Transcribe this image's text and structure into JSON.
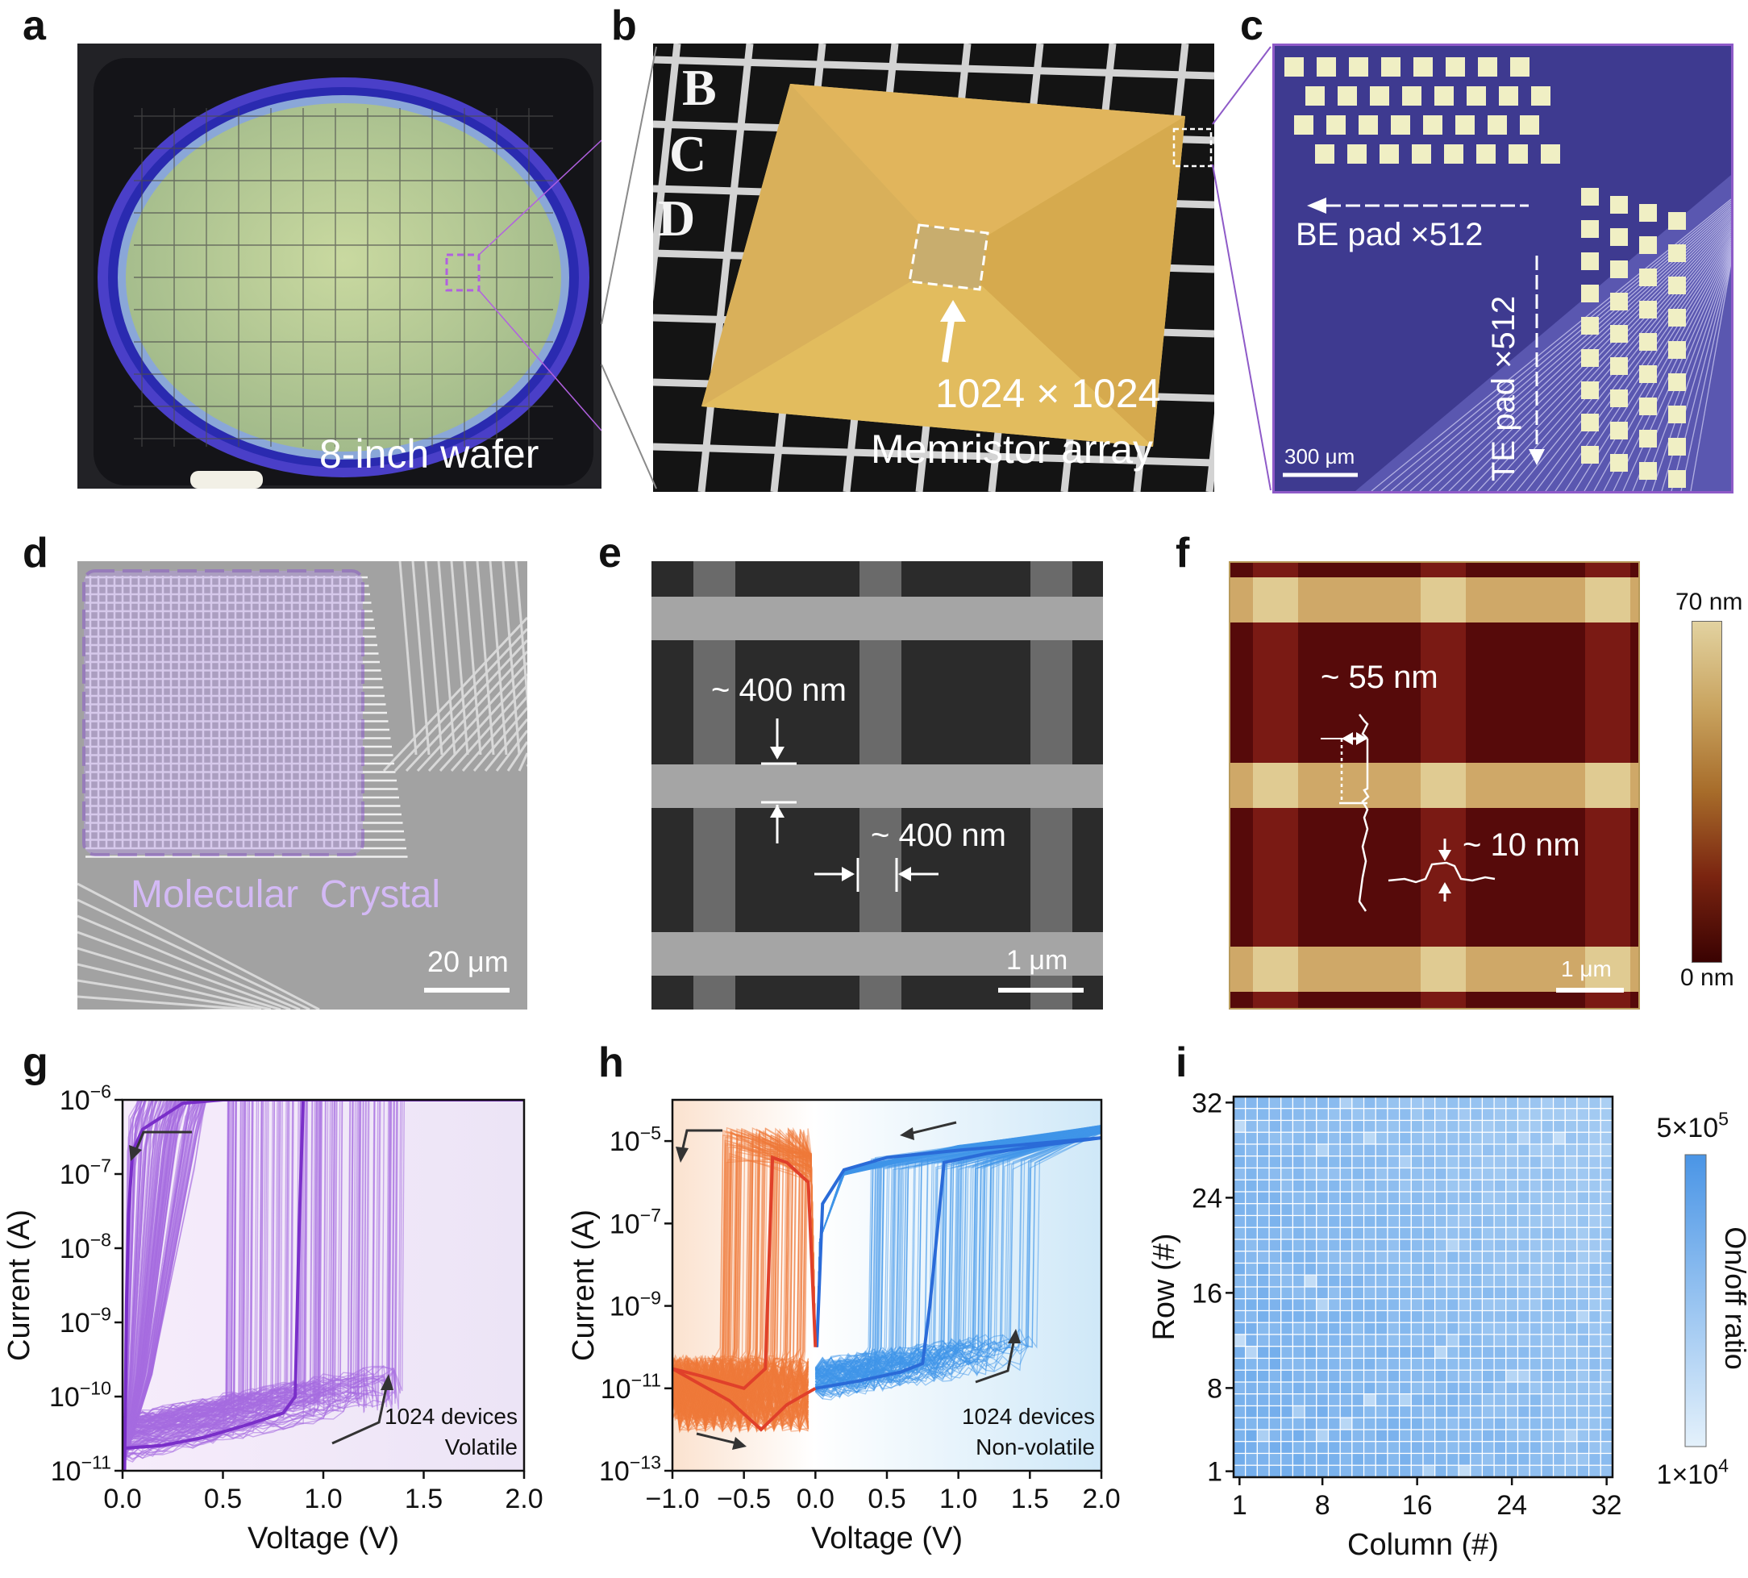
{
  "panels": {
    "a": {
      "letter": "a",
      "caption": "8-inch wafer"
    },
    "b": {
      "letter": "b",
      "caption_line1": "1024 × 1024",
      "caption_line2": "Memristor array",
      "wafer_letters": [
        "B",
        "C",
        "D"
      ]
    },
    "c": {
      "letter": "c",
      "be_label": "BE pad ×512",
      "te_label": "TE pad ×512",
      "scale": "300 μm"
    },
    "d": {
      "letter": "d",
      "overlay_label": "Molecular  Crystal",
      "scale": "20 μm"
    },
    "e": {
      "letter": "e",
      "width_label_1": "~ 400 nm",
      "width_label_2": "~ 400 nm",
      "scale": "1 μm"
    },
    "f": {
      "letter": "f",
      "height_label_1": "~ 55 nm",
      "height_label_2": "~ 10 nm",
      "scale": "1 μm",
      "colorbar_max": "70 nm",
      "colorbar_min": "0 nm"
    },
    "g": {
      "letter": "g"
    },
    "h": {
      "letter": "h"
    },
    "i": {
      "letter": "i"
    }
  },
  "colors": {
    "purple": "#a56be0",
    "purple_dark": "#7a2fc9",
    "orange": "#f07a3a",
    "orange_dark": "#e0402a",
    "blue": "#3f95ea",
    "blue_dark": "#2a6bd8",
    "heat_low": "#e4f1fb",
    "heat_high": "#4a95e6"
  },
  "chart_data": [
    {
      "type": "line",
      "panel": "g",
      "xlabel": "Voltage (V)",
      "ylabel": "Current (A)",
      "xlim": [
        0.0,
        2.0
      ],
      "xticks": [
        "0.0",
        "0.5",
        "1.0",
        "1.5",
        "2.0"
      ],
      "yscale": "log",
      "ylim": [
        1e-11,
        1e-06
      ],
      "yticks": [
        {
          "base": "10",
          "exp": "-11"
        },
        {
          "base": "10",
          "exp": "-10"
        },
        {
          "base": "10",
          "exp": "-9"
        },
        {
          "base": "10",
          "exp": "-8"
        },
        {
          "base": "10",
          "exp": "-7"
        },
        {
          "base": "10",
          "exp": "-6"
        }
      ],
      "annotation": [
        "1024 devices",
        "Volatile"
      ],
      "compliance_current": 1e-06,
      "series": [
        {
          "role": "forward sweep (representative)",
          "x": [
            0.0,
            0.2,
            0.4,
            0.6,
            0.8,
            0.86,
            0.88,
            0.9,
            1.0,
            1.5,
            2.0
          ],
          "y": [
            2e-11,
            2.2e-11,
            2.8e-11,
            4e-11,
            6e-11,
            1e-10,
            2e-08,
            1e-06,
            1e-06,
            1e-06,
            1e-06
          ]
        },
        {
          "role": "backward sweep (representative)",
          "x": [
            2.0,
            1.0,
            0.5,
            0.3,
            0.2,
            0.1,
            0.05,
            0.03,
            0.02,
            0.01
          ],
          "y": [
            1e-06,
            1e-06,
            1e-06,
            9e-07,
            6e-07,
            4e-07,
            2e-07,
            3e-08,
            2e-09,
            1e-11
          ]
        }
      ],
      "device_set_voltage_range": [
        0.5,
        1.4
      ]
    },
    {
      "type": "line",
      "panel": "h",
      "xlabel": "Voltage (V)",
      "ylabel": "Current (A)",
      "xlim": [
        -1.0,
        2.0
      ],
      "xticks": [
        "−1.0",
        "−0.5",
        "0.0",
        "0.5",
        "1.0",
        "1.5",
        "2.0"
      ],
      "yscale": "log",
      "ylim": [
        1e-13,
        0.0001
      ],
      "yticks": [
        {
          "base": "10",
          "exp": "-13"
        },
        {
          "base": "10",
          "exp": "-11"
        },
        {
          "base": "10",
          "exp": "-9"
        },
        {
          "base": "10",
          "exp": "-7"
        },
        {
          "base": "10",
          "exp": "-5"
        }
      ],
      "annotation": [
        "1024 devices",
        "Non-volatile"
      ],
      "series": [
        {
          "role": "positive forward (representative)",
          "x": [
            0.0,
            0.3,
            0.6,
            0.75,
            0.8,
            0.9,
            1.2,
            1.6,
            2.0
          ],
          "y": [
            1e-11,
            1.5e-11,
            2.5e-11,
            4e-11,
            1e-09,
            3e-06,
            5e-06,
            8e-06,
            1.2e-05
          ]
        },
        {
          "role": "positive return (representative)",
          "x": [
            2.0,
            1.0,
            0.5,
            0.2,
            0.05,
            0.01
          ],
          "y": [
            1.2e-05,
            6e-06,
            4e-06,
            2e-06,
            3e-07,
            1e-10
          ]
        },
        {
          "role": "negative sweep (representative)",
          "x": [
            0.0,
            -0.05,
            -0.2,
            -0.3,
            -0.35,
            -0.5,
            -0.8,
            -1.0
          ],
          "y": [
            1e-10,
            1e-06,
            3e-06,
            4e-06,
            3e-11,
            1e-11,
            2e-11,
            3e-11
          ]
        },
        {
          "role": "negative return (representative)",
          "x": [
            -1.0,
            -0.6,
            -0.38,
            -0.2,
            0.0
          ],
          "y": [
            3e-11,
            5e-12,
            1e-12,
            4e-12,
            1e-11
          ]
        }
      ]
    },
    {
      "type": "heatmap",
      "panel": "i",
      "xlabel": "Column (#)",
      "ylabel": "Row (#)",
      "xticks": [
        "1",
        "8",
        "16",
        "24",
        "32"
      ],
      "yticks": [
        "1",
        "8",
        "16",
        "24",
        "32"
      ],
      "rows": 32,
      "cols": 32,
      "colorbar_label": "On/off ratio",
      "colorbar_range": [
        10000,
        500000
      ],
      "colorbar_ticks": [
        {
          "base": "1×10",
          "exp": "4"
        },
        {
          "base": "5×10",
          "exp": "5"
        }
      ],
      "scale": "log"
    }
  ]
}
